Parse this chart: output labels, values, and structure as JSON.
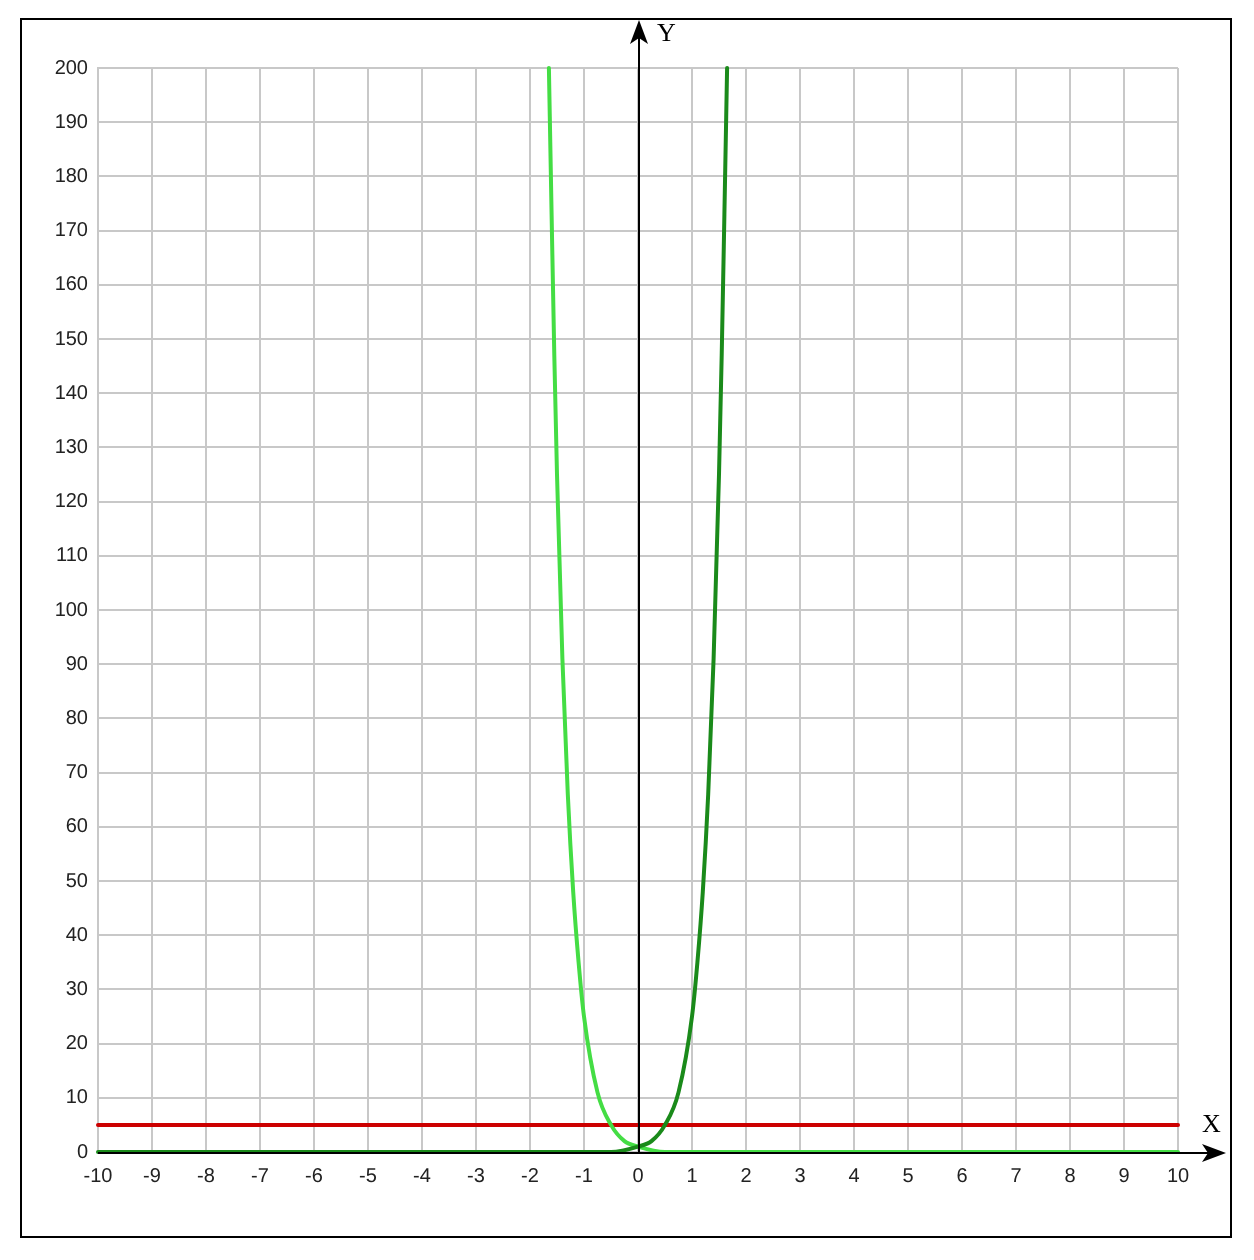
{
  "chart_data": {
    "type": "line",
    "xlabel": "X",
    "ylabel": "Y",
    "xlim": [
      -10,
      10
    ],
    "xticks": [
      -10,
      -9,
      -8,
      -7,
      -6,
      -5,
      -4,
      -3,
      -2,
      -1,
      0,
      1,
      2,
      3,
      4,
      5,
      6,
      7,
      8,
      9,
      10
    ],
    "ylim": [
      0,
      200
    ],
    "yticks": [
      0,
      10,
      20,
      30,
      40,
      50,
      60,
      70,
      80,
      90,
      100,
      110,
      120,
      130,
      140,
      150,
      160,
      170,
      180,
      190,
      200
    ],
    "grid": true,
    "legend": false,
    "marker": "none",
    "line_style": "solid",
    "series": [
      {
        "color": "#1a8a1a",
        "x": [
          -10,
          -8,
          -6,
          -4,
          -2,
          -1,
          -0.5,
          0,
          0.25,
          0.5,
          0.75,
          1,
          1.1,
          1.2,
          1.3,
          1.4,
          1.5,
          1.55,
          1.6,
          1.65
        ],
        "values": [
          0,
          0,
          0,
          0,
          0,
          0,
          0,
          1,
          2,
          5,
          11,
          25,
          35,
          48,
          66,
          91,
          125,
          147,
          173,
          200
        ]
      },
      {
        "color": "#44dd44",
        "x": [
          -1.65,
          -1.6,
          -1.55,
          -1.5,
          -1.4,
          -1.3,
          -1.2,
          -1.1,
          -1,
          -0.75,
          -0.5,
          -0.25,
          0,
          0.5,
          1,
          2,
          4,
          6,
          8,
          10
        ],
        "values": [
          200,
          173,
          147,
          125,
          91,
          66,
          48,
          35,
          25,
          11,
          5,
          2,
          1,
          0,
          0,
          0,
          0,
          0,
          0,
          0
        ]
      },
      {
        "color": "#cc0000",
        "x": [
          -10,
          10
        ],
        "values": [
          5,
          5
        ]
      }
    ]
  }
}
